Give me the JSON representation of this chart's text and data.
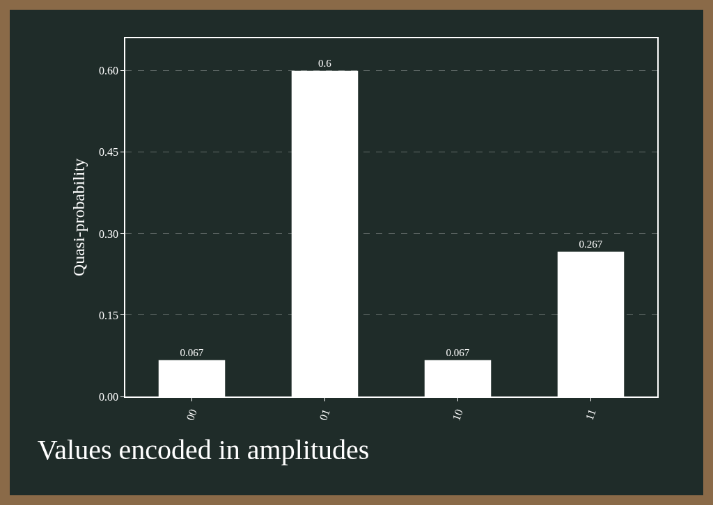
{
  "chart_data": {
    "type": "bar",
    "title": "Values encoded in amplitudes",
    "ylabel": "Quasi-probability",
    "categories": [
      "00",
      "01",
      "10",
      "11"
    ],
    "values": [
      0.067,
      0.6,
      0.067,
      0.267
    ],
    "color": "#ffffff",
    "data_labels": true,
    "grid": "y",
    "ylim": [
      0,
      0.66
    ],
    "yticks": [
      {
        "value": 0,
        "label": "0.00"
      },
      {
        "value": 0.15,
        "label": "0.15"
      },
      {
        "value": 0.3,
        "label": "0.30"
      },
      {
        "value": 0.45,
        "label": "0.45"
      },
      {
        "value": 0.6,
        "label": "0.60"
      }
    ]
  }
}
